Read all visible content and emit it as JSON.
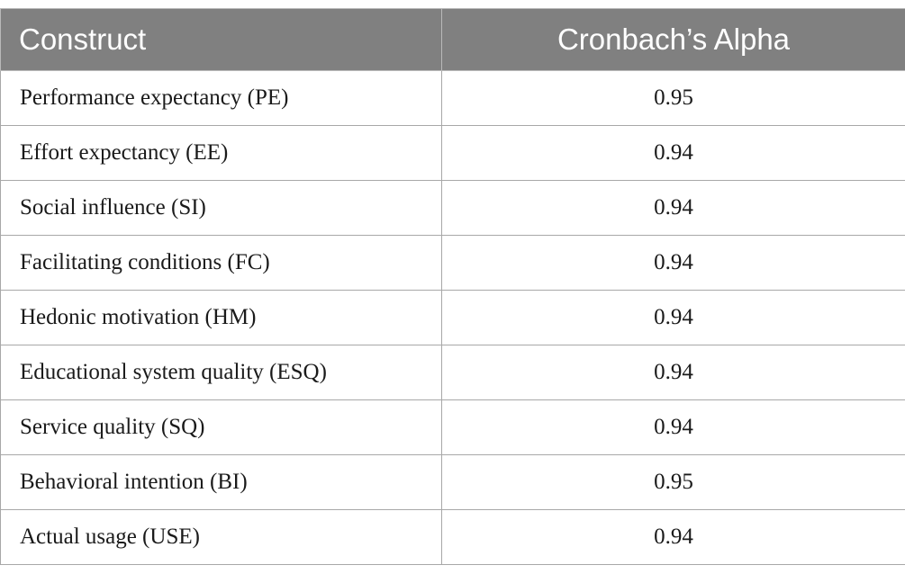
{
  "table": {
    "headers": [
      "Construct",
      "Cronbach’s Alpha"
    ],
    "rows": [
      {
        "construct": "Performance expectancy (PE)",
        "alpha": "0.95"
      },
      {
        "construct": "Effort expectancy (EE)",
        "alpha": "0.94"
      },
      {
        "construct": "Social influence (SI)",
        "alpha": "0.94"
      },
      {
        "construct": "Facilitating conditions (FC)",
        "alpha": "0.94"
      },
      {
        "construct": "Hedonic motivation (HM)",
        "alpha": "0.94"
      },
      {
        "construct": "Educational system quality (ESQ)",
        "alpha": "0.94"
      },
      {
        "construct": "Service quality (SQ)",
        "alpha": "0.94"
      },
      {
        "construct": "Behavioral intention (BI)",
        "alpha": "0.95"
      },
      {
        "construct": "Actual usage (USE)",
        "alpha": "0.94"
      }
    ]
  },
  "colors": {
    "header_bg": "#808080",
    "header_text": "#ffffff",
    "border": "#a8a8a8"
  }
}
